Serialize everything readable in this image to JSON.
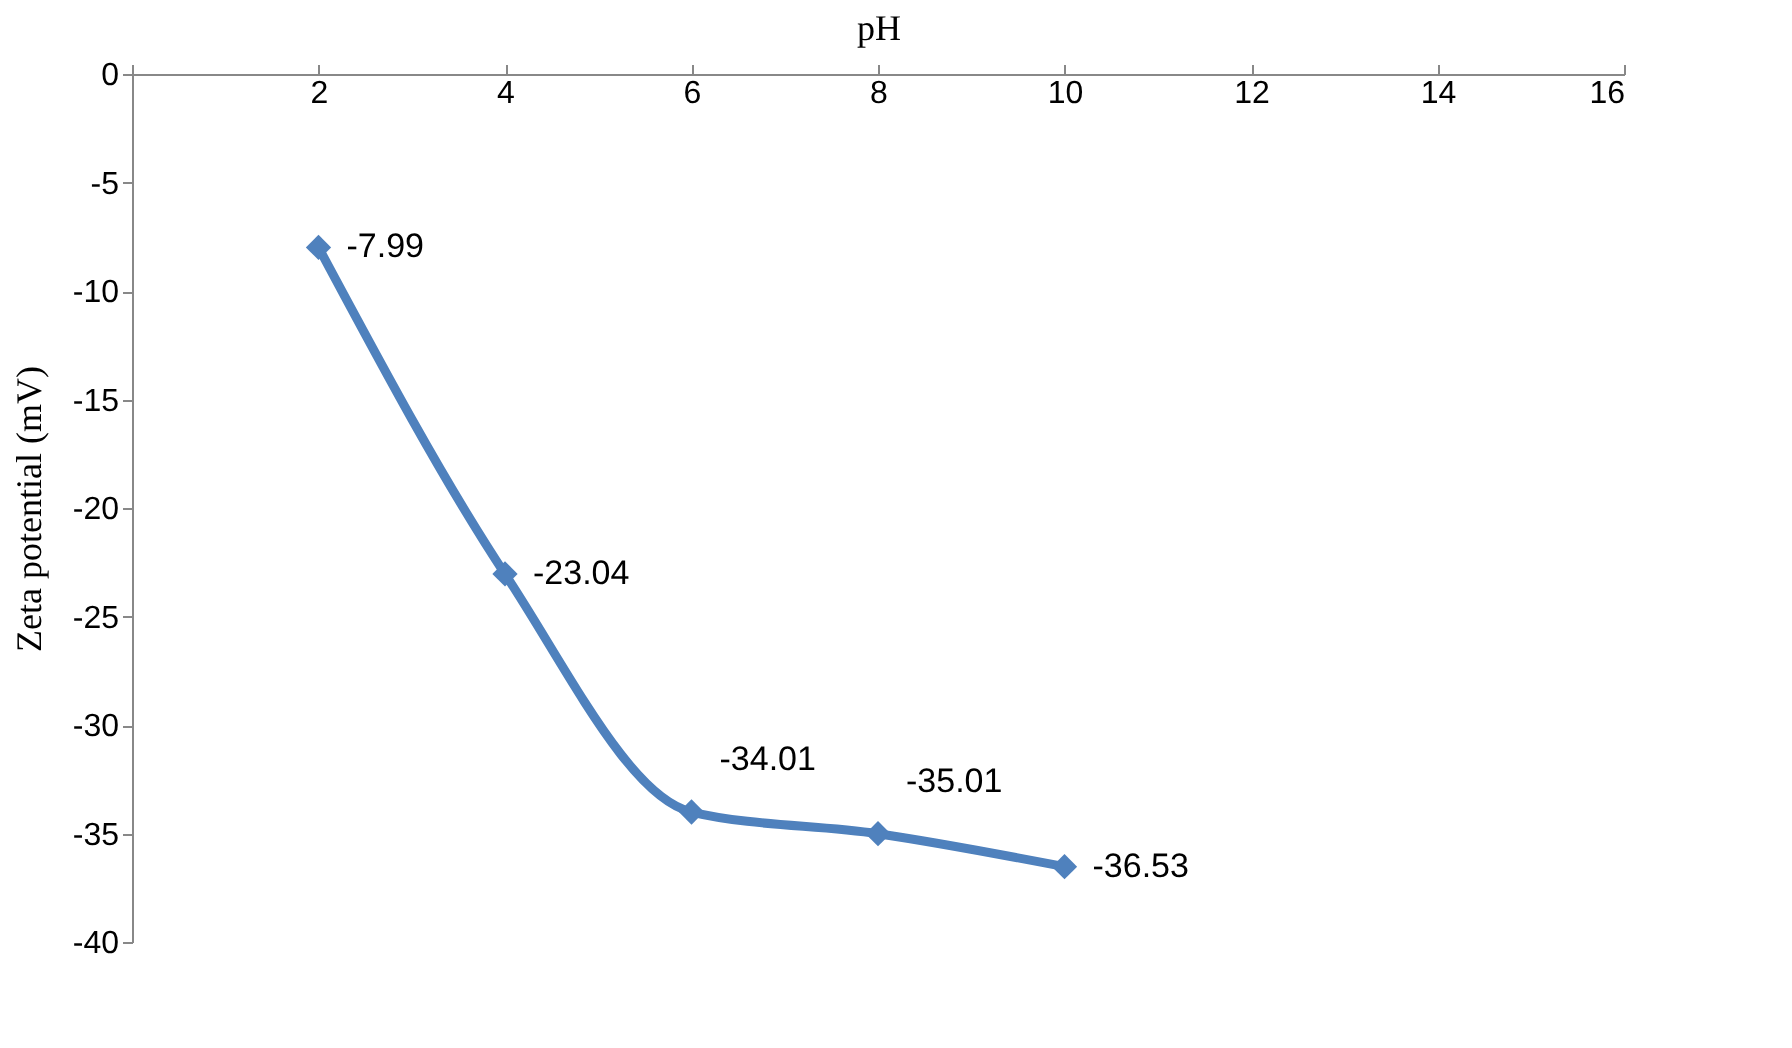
{
  "chart_data": {
    "type": "line",
    "xlabel": "pH",
    "ylabel": "Zeta potential (mV)",
    "x": [
      2,
      4,
      6,
      8,
      10
    ],
    "series": [
      {
        "color": "#4f81bd",
        "values": [
          -7.99,
          -23.04,
          -34.01,
          -35.01,
          -36.53
        ]
      }
    ],
    "xlim": [
      0,
      16
    ],
    "xticks": [
      {
        "value": 0,
        "label": null
      },
      2,
      4,
      6,
      8,
      10,
      12,
      14,
      16
    ],
    "ylim": [
      -40,
      0
    ],
    "yticks": [
      0,
      -5,
      -10,
      -15,
      -20,
      -25,
      -30,
      -35,
      -40
    ],
    "grid": false,
    "marker": "diamond",
    "line_style": "solid",
    "data_labels": true
  }
}
